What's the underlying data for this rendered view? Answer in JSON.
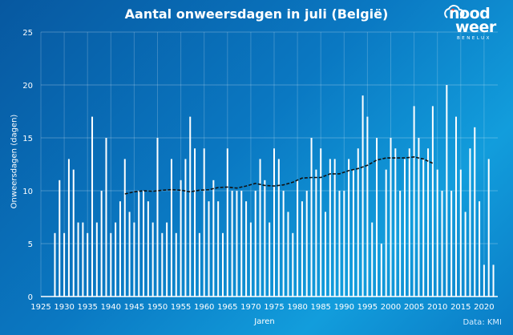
{
  "chart_data": {
    "type": "bar",
    "title": "Aantal onweersdagen in juli (België)",
    "xlabel": "Jaren",
    "ylabel": "Onweersdagen (dagen)",
    "source": "Data: KMI",
    "xlim": [
      1925,
      2023
    ],
    "ylim": [
      0,
      25
    ],
    "xticks": [
      1925,
      1930,
      1935,
      1940,
      1945,
      1950,
      1955,
      1960,
      1965,
      1970,
      1975,
      1980,
      1985,
      1990,
      1995,
      2000,
      2005,
      2010,
      2015,
      2020
    ],
    "yticks": [
      0,
      5,
      10,
      15,
      20,
      25
    ],
    "grid": true,
    "bar_color": "#ffffff",
    "x_start": 1928,
    "values": [
      6,
      11,
      6,
      13,
      12,
      7,
      7,
      6,
      17,
      7,
      10,
      15,
      6,
      7,
      9,
      13,
      8,
      7,
      10,
      10,
      9,
      7,
      15,
      6,
      7,
      13,
      6,
      11,
      13,
      17,
      14,
      6,
      14,
      9,
      11,
      9,
      6,
      14,
      10,
      10,
      10,
      9,
      7,
      10,
      13,
      11,
      7,
      14,
      13,
      10,
      8,
      6,
      11,
      9,
      10,
      15,
      12,
      14,
      8,
      13,
      13,
      10,
      10,
      13,
      12,
      14,
      19,
      17,
      7,
      15,
      5,
      12,
      15,
      14,
      10,
      13,
      14,
      18,
      15,
      13,
      14,
      18,
      12,
      10,
      20,
      10,
      17,
      12,
      8,
      14,
      16,
      9,
      3,
      13,
      3
    ],
    "series": [
      {
        "type": "line",
        "style": "dashed",
        "color": "#111111",
        "points": [
          [
            1943,
            9.7
          ],
          [
            1945,
            9.9
          ],
          [
            1947,
            10.0
          ],
          [
            1949,
            9.95
          ],
          [
            1951,
            10.05
          ],
          [
            1953,
            10.1
          ],
          [
            1955,
            10.05
          ],
          [
            1957,
            9.9
          ],
          [
            1959,
            10.05
          ],
          [
            1961,
            10.1
          ],
          [
            1963,
            10.3
          ],
          [
            1965,
            10.35
          ],
          [
            1967,
            10.25
          ],
          [
            1969,
            10.45
          ],
          [
            1971,
            10.7
          ],
          [
            1973,
            10.5
          ],
          [
            1975,
            10.45
          ],
          [
            1977,
            10.55
          ],
          [
            1979,
            10.8
          ],
          [
            1981,
            11.2
          ],
          [
            1983,
            11.25
          ],
          [
            1985,
            11.25
          ],
          [
            1987,
            11.6
          ],
          [
            1989,
            11.6
          ],
          [
            1991,
            11.9
          ],
          [
            1993,
            12.1
          ],
          [
            1995,
            12.4
          ],
          [
            1997,
            12.9
          ],
          [
            1999,
            13.1
          ],
          [
            2001,
            13.1
          ],
          [
            2003,
            13.1
          ],
          [
            2005,
            13.2
          ],
          [
            2007,
            13.0
          ],
          [
            2009,
            12.6
          ]
        ]
      }
    ]
  },
  "logo": {
    "line1": "nood",
    "line2": "weer",
    "line3": "BENELUX"
  }
}
